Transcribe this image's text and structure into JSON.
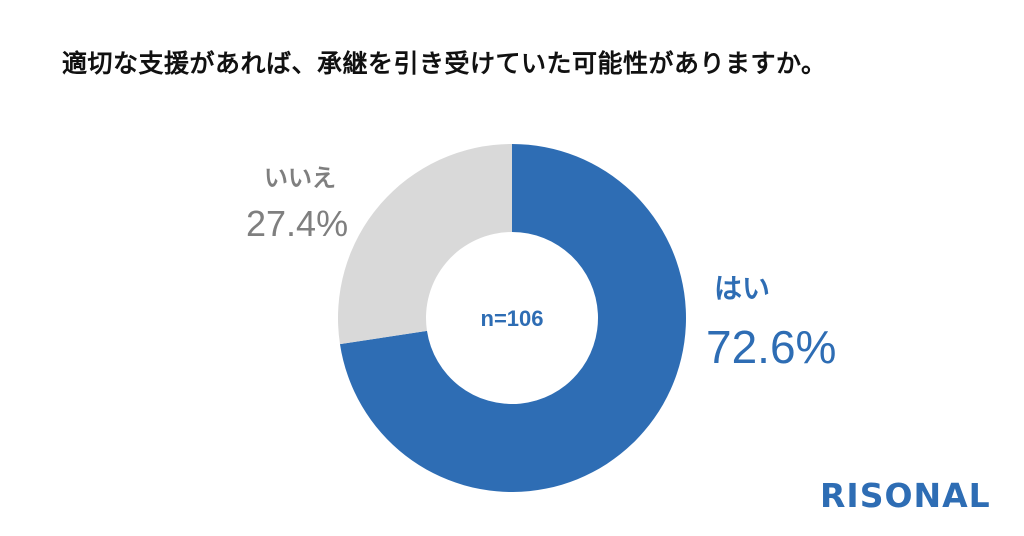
{
  "chart_data": {
    "type": "pie",
    "title": "適切な支援があれば、承継を引き受けていた可能性がありますか。",
    "center_label": "n=106",
    "slices": [
      {
        "label": "はい",
        "value": 72.6,
        "display": "72.6%",
        "color": "#2E6DB4"
      },
      {
        "label": "いいえ",
        "value": 27.4,
        "display": "27.4%",
        "color": "#D9D9D9",
        "label_color": "#7F7F7F"
      }
    ]
  },
  "brand": {
    "name": "RISONAL",
    "color": "#2E6DB4"
  }
}
